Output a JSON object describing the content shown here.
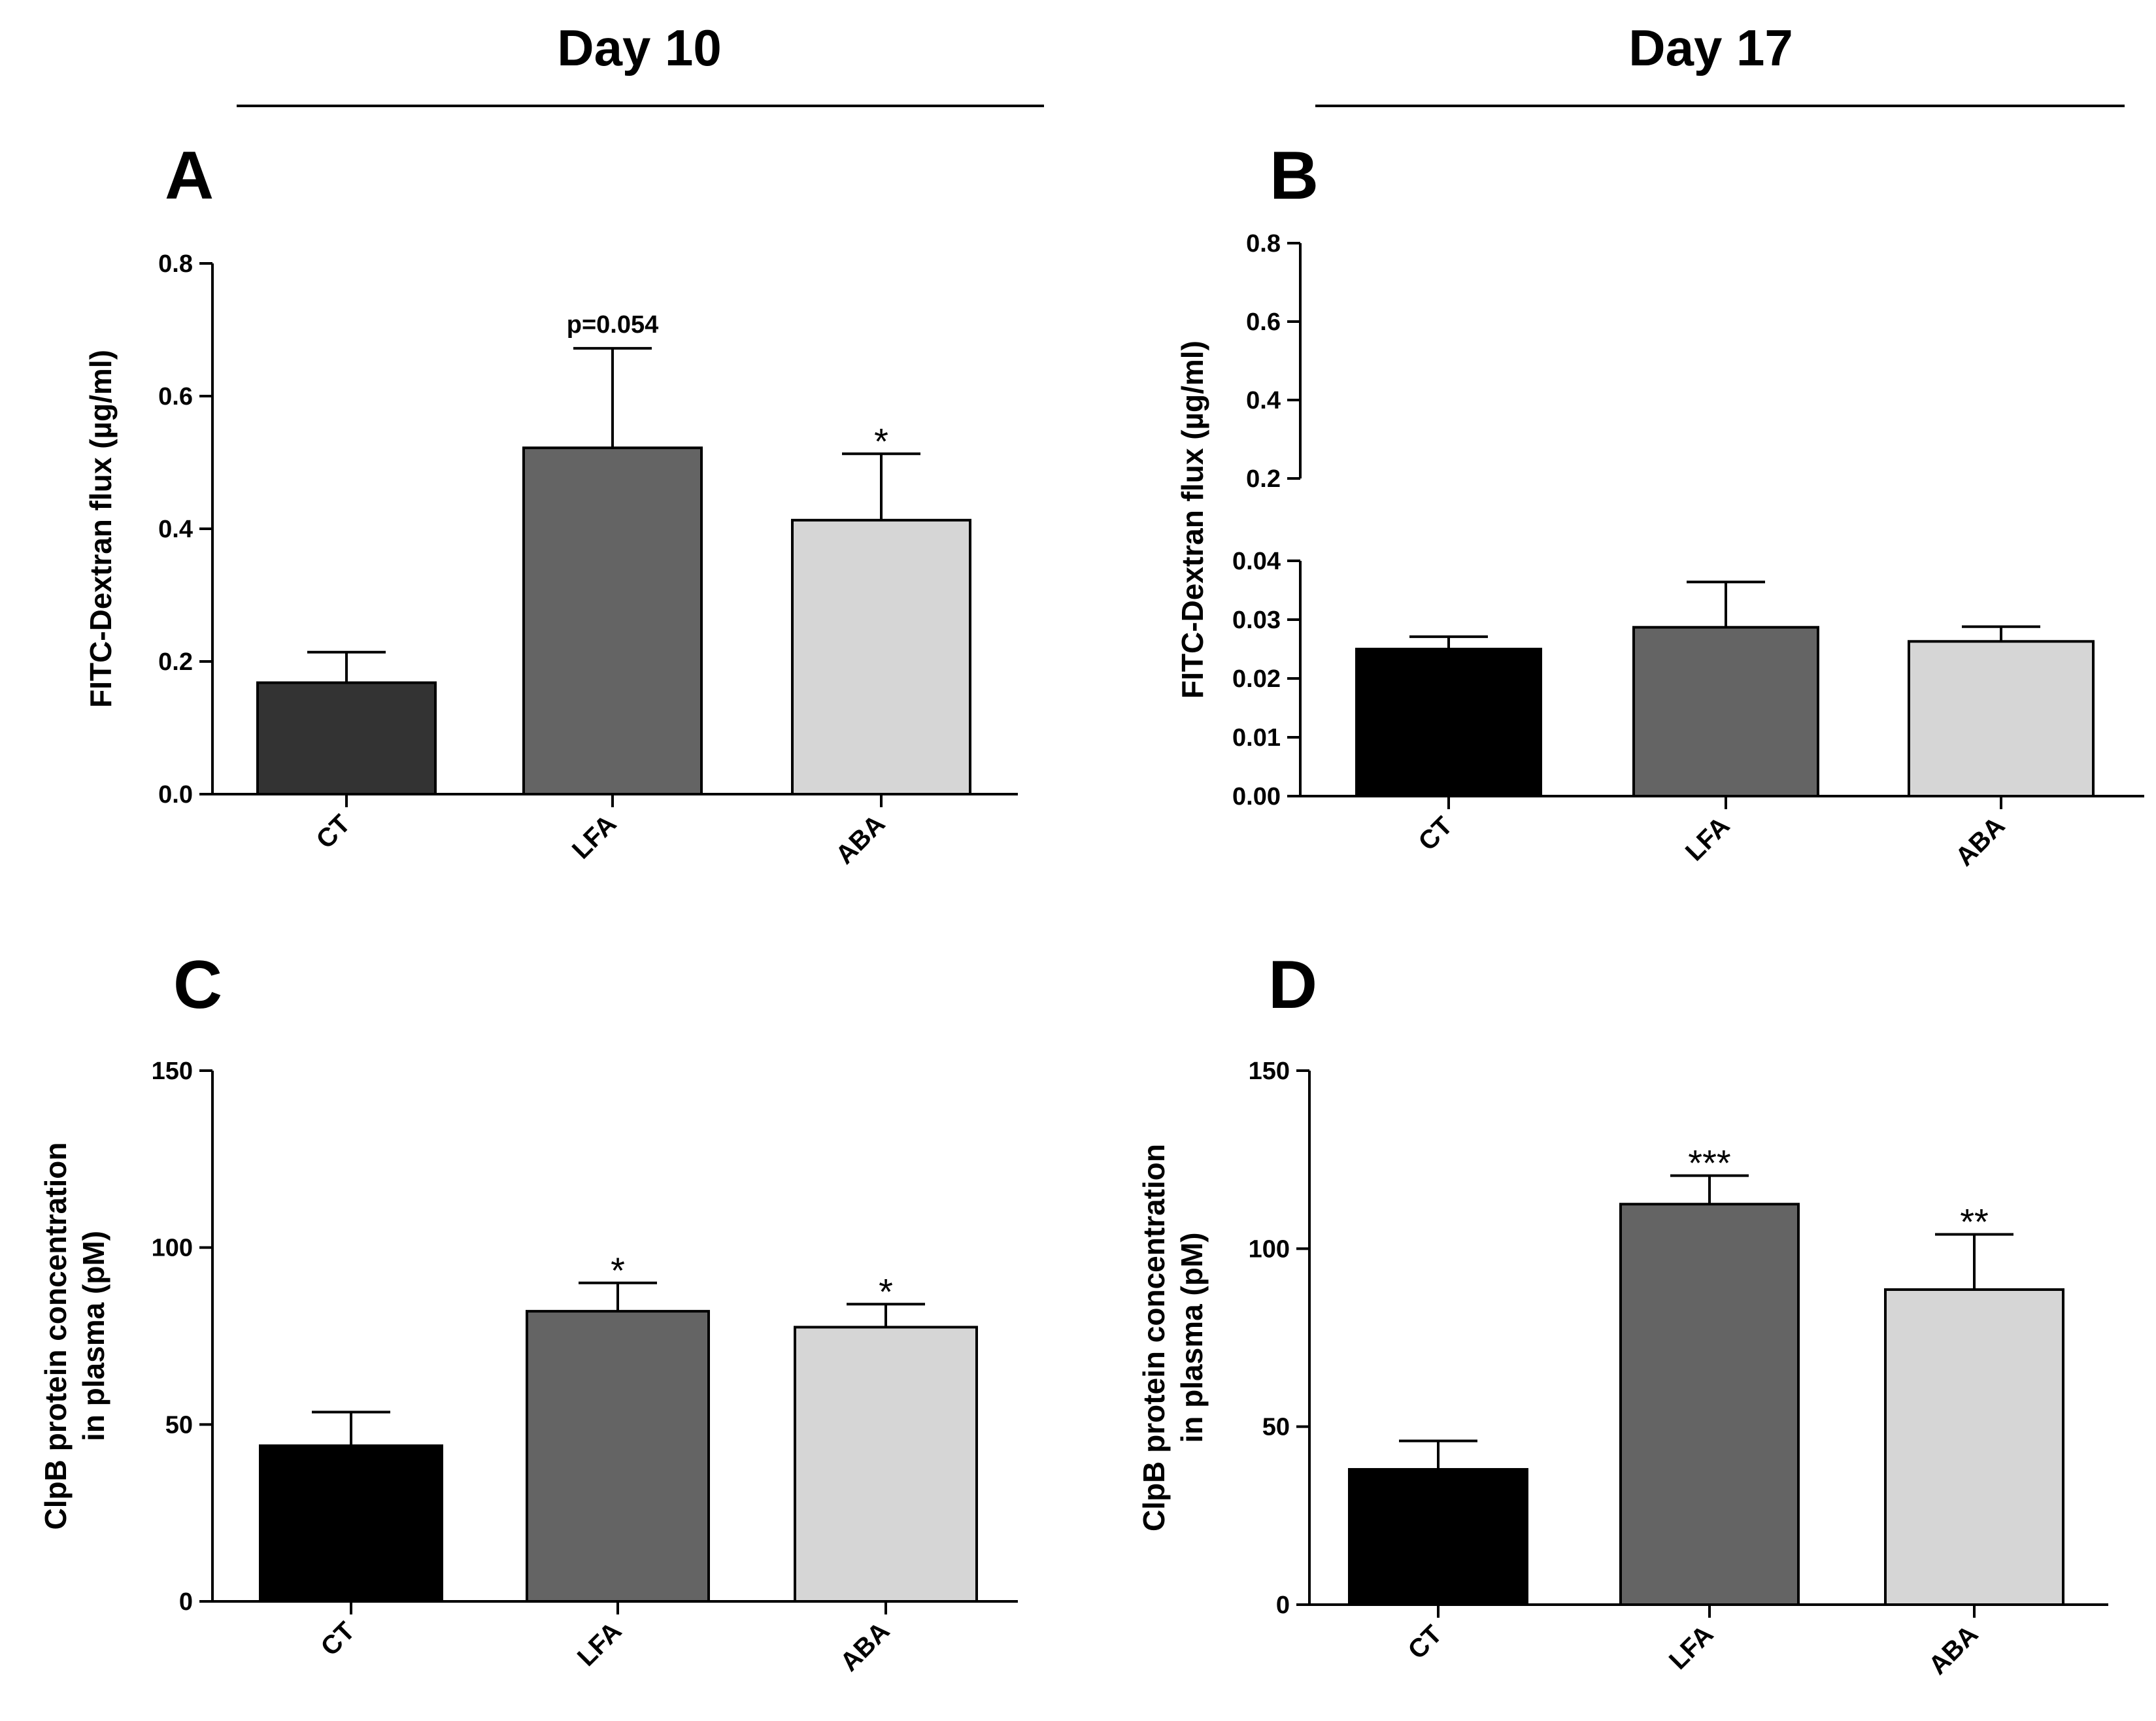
{
  "headers": {
    "left": "Day 10",
    "right": "Day 17"
  },
  "chart_data": [
    {
      "panel": "A",
      "type": "bar",
      "categories": [
        "CT",
        "LFA",
        "ABA"
      ],
      "values": [
        0.168,
        0.522,
        0.413
      ],
      "errors": [
        0.046,
        0.15,
        0.1
      ],
      "colors": [
        "#333333",
        "#646464",
        "#d6d6d6"
      ],
      "annotations": [
        "",
        "p=0.054",
        "*"
      ],
      "ylabel": [
        "FITC-Dextran flux (µg/ml)"
      ],
      "ylim": [
        0,
        0.8
      ],
      "yticks": [
        "0.0",
        "0.2",
        "0.4",
        "0.6",
        "0.8"
      ],
      "ytick_values": [
        0,
        0.2,
        0.4,
        0.6,
        0.8
      ]
    },
    {
      "panel": "B",
      "type": "bar",
      "broken_axis": true,
      "categories": [
        "CT",
        "LFA",
        "ABA"
      ],
      "values": [
        0.025,
        0.0287,
        0.0263
      ],
      "errors": [
        0.0021,
        0.0077,
        0.0025
      ],
      "colors": [
        "#000000",
        "#646464",
        "#d6d6d6"
      ],
      "annotations": [
        "",
        "",
        ""
      ],
      "ylabel": [
        "FITC-Dextran flux (µg/ml)"
      ],
      "ylim_lower": [
        0,
        0.04
      ],
      "ylim_upper": [
        0.2,
        0.8
      ],
      "yticks": [
        "0.00",
        "0.01",
        "0.02",
        "0.03",
        "0.04"
      ],
      "ytick_values": [
        0,
        0.01,
        0.02,
        0.03,
        0.04
      ],
      "yticks_upper": [
        "0.2",
        "0.4",
        "0.6",
        "0.8"
      ],
      "ytick_upper_values": [
        0.2,
        0.4,
        0.6,
        0.8
      ]
    },
    {
      "panel": "C",
      "type": "bar",
      "categories": [
        "CT",
        "LFA",
        "ABA"
      ],
      "values": [
        44,
        82,
        77.5
      ],
      "errors": [
        9.5,
        8,
        6.5
      ],
      "colors": [
        "#000000",
        "#646464",
        "#d6d6d6"
      ],
      "annotations": [
        "",
        "*",
        "*"
      ],
      "ylabel": [
        "ClpB protein concentration",
        "in plasma (pM)"
      ],
      "ylim": [
        0,
        150
      ],
      "yticks": [
        "0",
        "50",
        "100",
        "150"
      ],
      "ytick_values": [
        0,
        50,
        100,
        150
      ]
    },
    {
      "panel": "D",
      "type": "bar",
      "categories": [
        "CT",
        "LFA",
        "ABA"
      ],
      "values": [
        38,
        112.5,
        88.5
      ],
      "errors": [
        8,
        8,
        15.5
      ],
      "colors": [
        "#000000",
        "#646464",
        "#d6d6d6"
      ],
      "annotations": [
        "",
        "***",
        "**"
      ],
      "ylabel": [
        "ClpB protein concentration",
        "in plasma (pM)"
      ],
      "ylim": [
        0,
        150
      ],
      "yticks": [
        "0",
        "50",
        "100",
        "150"
      ],
      "ytick_values": [
        0,
        50,
        100,
        150
      ]
    }
  ]
}
